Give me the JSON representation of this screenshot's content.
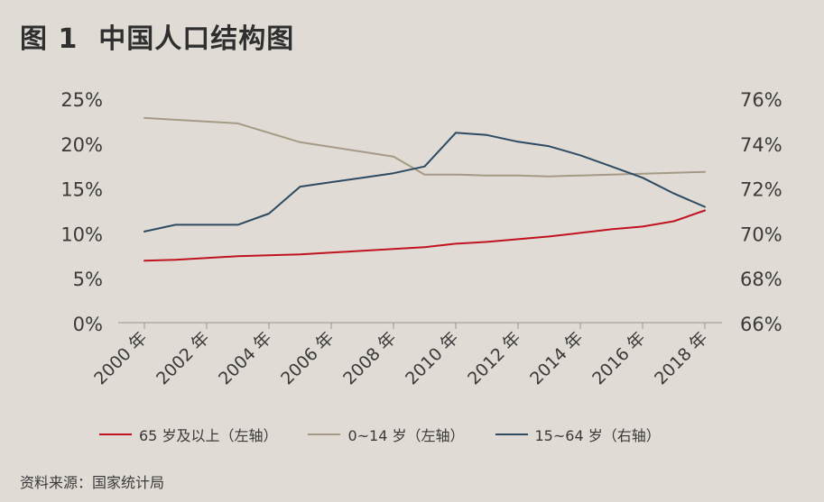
{
  "title": "图 1  中国人口结构图",
  "source": "资料来源：国家统计局",
  "colors": {
    "background": "#e0dbd4",
    "senior": "#c1121f",
    "children": "#a59a85",
    "working": "#2d4a63",
    "axis": "#9a9590",
    "text": "#3a3a3a"
  },
  "chart_data": {
    "type": "line",
    "x_tick_labels": [
      "2000 年",
      "2002 年",
      "2004 年",
      "2006 年",
      "2008 年",
      "2010 年",
      "2012 年",
      "2014 年",
      "2016 年",
      "2018 年"
    ],
    "y_left": {
      "ticks": [
        "0%",
        "5%",
        "10%",
        "15%",
        "20%",
        "25%"
      ],
      "range": [
        0,
        25
      ],
      "unit": "%"
    },
    "y_right": {
      "ticks": [
        "66%",
        "68%",
        "70%",
        "72%",
        "74%",
        "76%"
      ],
      "range": [
        66,
        76
      ],
      "unit": "%"
    },
    "legend_position": "bottom",
    "grid": false,
    "series": [
      {
        "name": "65 岁及以上（左轴）",
        "axis": "left",
        "color_key": "senior",
        "x": [
          2000,
          2001,
          2002,
          2003,
          2004,
          2005,
          2006,
          2007,
          2008,
          2009,
          2010,
          2011,
          2012,
          2013,
          2014,
          2015,
          2016,
          2017,
          2018
        ],
        "values": [
          7.0,
          7.1,
          7.3,
          7.5,
          7.6,
          7.7,
          7.9,
          8.1,
          8.3,
          8.5,
          8.9,
          9.1,
          9.4,
          9.7,
          10.1,
          10.5,
          10.8,
          11.4,
          12.6
        ]
      },
      {
        "name": "0~14 岁（左轴）",
        "axis": "left",
        "color_key": "children",
        "x": [
          2000,
          2003,
          2005,
          2008,
          2009,
          2010,
          2011,
          2012,
          2013,
          2014,
          2015,
          2016,
          2017,
          2018
        ],
        "values": [
          22.9,
          22.3,
          20.2,
          18.6,
          16.6,
          16.6,
          16.5,
          16.5,
          16.4,
          16.5,
          16.6,
          16.7,
          16.8,
          16.9
        ]
      },
      {
        "name": "15~64 岁（右轴）",
        "axis": "right",
        "color_key": "working",
        "x": [
          2000,
          2001,
          2002,
          2003,
          2004,
          2005,
          2006,
          2007,
          2008,
          2009,
          2010,
          2011,
          2012,
          2013,
          2014,
          2015,
          2016,
          2017,
          2018
        ],
        "values": [
          70.1,
          70.4,
          70.4,
          70.4,
          70.9,
          72.1,
          72.3,
          72.5,
          72.7,
          73.0,
          74.5,
          74.4,
          74.1,
          73.9,
          73.5,
          73.0,
          72.5,
          71.8,
          71.2
        ]
      }
    ]
  }
}
